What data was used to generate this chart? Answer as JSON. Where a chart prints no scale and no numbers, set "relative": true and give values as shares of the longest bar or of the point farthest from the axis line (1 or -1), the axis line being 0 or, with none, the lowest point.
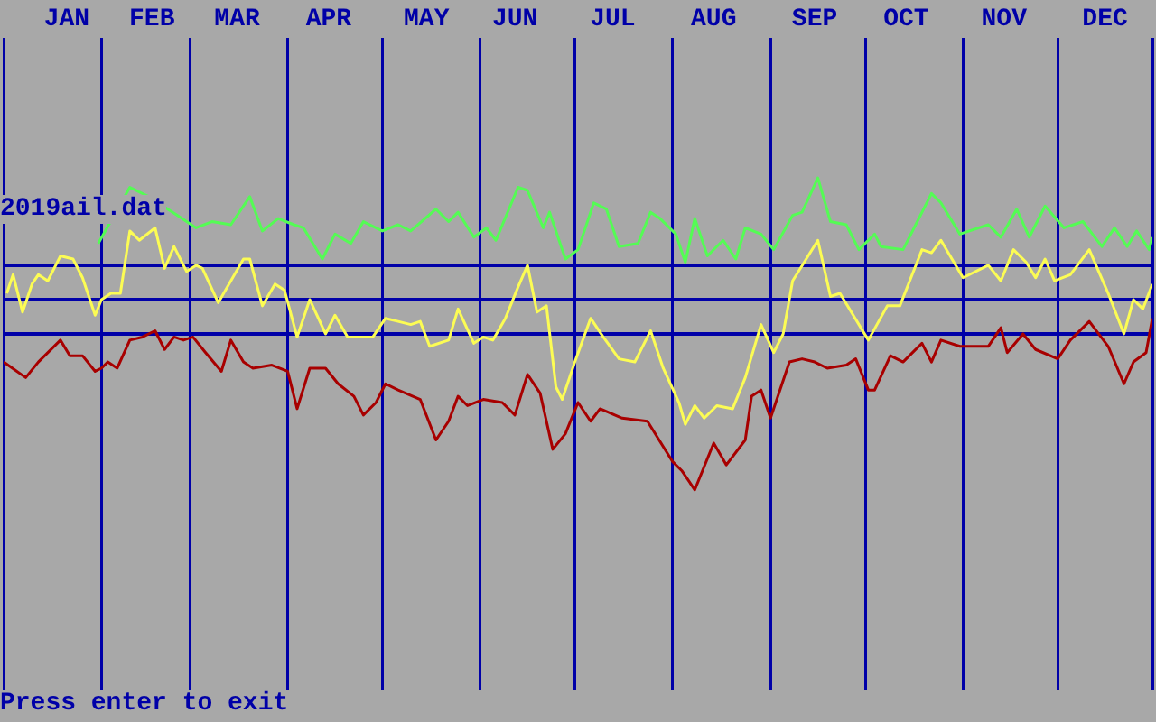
{
  "chart_data": {
    "type": "line",
    "relative": true,
    "xlim": [
      "--01-01",
      "--12-31"
    ],
    "xticks": [
      {
        "value": "--01-01",
        "label": null
      },
      {
        "value": "--01-21",
        "label": "JAN"
      },
      {
        "value": "--02-01",
        "label": null
      },
      {
        "value": "--02-17",
        "label": "FEB"
      },
      {
        "value": "--03-01",
        "label": null
      },
      {
        "value": "--03-16",
        "label": "MAR"
      },
      {
        "value": "--04-01",
        "label": null
      },
      {
        "value": "--04-14",
        "label": "APR"
      },
      {
        "value": "--05-01",
        "label": null
      },
      {
        "value": "--05-15",
        "label": "MAY"
      },
      {
        "value": "--06-01",
        "label": null
      },
      {
        "value": "--06-12",
        "label": "JUN"
      },
      {
        "value": "--07-01",
        "label": null
      },
      {
        "value": "--07-13",
        "label": "JUL"
      },
      {
        "value": "--08-01",
        "label": null
      },
      {
        "value": "--08-14",
        "label": "AUG"
      },
      {
        "value": "--09-01",
        "label": null
      },
      {
        "value": "--09-15",
        "label": "SEP"
      },
      {
        "value": "--10-01",
        "label": null
      },
      {
        "value": "--10-14",
        "label": "OCT"
      },
      {
        "value": "--11-01",
        "label": null
      },
      {
        "value": "--11-14",
        "label": "NOV"
      },
      {
        "value": "--12-01",
        "label": null
      },
      {
        "value": "--12-16",
        "label": "DEC"
      },
      {
        "value": "--12-31",
        "label": null
      }
    ],
    "grid": "x",
    "legend": false,
    "marker": "none",
    "line_style": "solid",
    "series": [
      {
        "color": "#54fc54",
        "x": [
          "--01-31",
          "--02-10",
          "--02-16",
          "--02-25",
          "--03-03",
          "--03-08",
          "--03-14",
          "--03-20",
          "--03-24",
          "--03-29",
          "--04-03",
          "--04-06",
          "--04-12",
          "--04-16",
          "--04-21",
          "--04-25",
          "--05-01",
          "--05-06",
          "--05-10",
          "--05-18",
          "--05-22",
          "--05-25",
          "--05-30",
          "--06-03",
          "--06-06",
          "--06-13",
          "--06-16",
          "--06-21",
          "--06-23",
          "--06-28",
          "--07-02",
          "--07-07",
          "--07-11",
          "--07-15",
          "--07-21",
          "--07-25",
          "--07-28",
          "--08-02",
          "--08-05",
          "--08-08",
          "--08-12",
          "--08-17",
          "--08-21",
          "--08-24",
          "--08-29",
          "--09-02",
          "--09-08",
          "--09-11",
          "--09-16",
          "--09-20",
          "--09-25",
          "--09-29",
          "--10-04",
          "--10-06",
          "--10-13",
          "--10-22",
          "--10-25",
          "--10-31",
          "--11-09",
          "--11-13",
          "--11-18",
          "--11-22",
          "--11-27",
          "--12-03",
          "--12-09",
          "--12-15",
          "--12-19",
          "--12-23",
          "--12-26",
          "--12-30",
          "--12-31"
        ],
        "values": [
          0.79,
          0.97,
          0.94,
          0.88,
          0.84,
          0.86,
          0.85,
          0.94,
          0.83,
          0.87,
          0.85,
          0.84,
          0.74,
          0.82,
          0.79,
          0.86,
          0.83,
          0.85,
          0.83,
          0.9,
          0.86,
          0.89,
          0.81,
          0.84,
          0.8,
          0.97,
          0.96,
          0.84,
          0.89,
          0.74,
          0.77,
          0.92,
          0.9,
          0.78,
          0.79,
          0.89,
          0.87,
          0.82,
          0.73,
          0.87,
          0.75,
          0.8,
          0.74,
          0.84,
          0.82,
          0.77,
          0.88,
          0.89,
          1.0,
          0.86,
          0.85,
          0.77,
          0.82,
          0.78,
          0.77,
          0.95,
          0.92,
          0.82,
          0.85,
          0.81,
          0.9,
          0.81,
          0.91,
          0.84,
          0.86,
          0.78,
          0.84,
          0.78,
          0.83,
          0.77,
          0.81
        ]
      },
      {
        "color": "#fcfc54",
        "x": [
          "--01-02",
          "--01-04",
          "--01-07",
          "--01-10",
          "--01-12",
          "--01-15",
          "--01-19",
          "--01-23",
          "--01-26",
          "--01-30",
          "--02-01",
          "--02-04",
          "--02-07",
          "--02-10",
          "--02-13",
          "--02-18",
          "--02-21",
          "--02-24",
          "--02-28",
          "--03-03",
          "--03-05",
          "--03-10",
          "--03-14",
          "--03-18",
          "--03-20",
          "--03-24",
          "--03-28",
          "--03-31",
          "--04-04",
          "--04-08",
          "--04-13",
          "--04-16",
          "--04-20",
          "--04-28",
          "--05-02",
          "--05-06",
          "--05-10",
          "--05-13",
          "--05-16",
          "--05-22",
          "--05-25",
          "--05-30",
          "--06-02",
          "--06-05",
          "--06-09",
          "--06-13",
          "--06-16",
          "--06-19",
          "--06-22",
          "--06-25",
          "--06-27",
          "--07-01",
          "--07-06",
          "--07-10",
          "--07-15",
          "--07-20",
          "--07-25",
          "--07-29",
          "--08-03",
          "--08-05",
          "--08-08",
          "--08-11",
          "--08-15",
          "--08-20",
          "--08-24",
          "--08-29",
          "--09-02",
          "--09-05",
          "--09-08",
          "--09-16",
          "--09-20",
          "--09-23",
          "--10-02",
          "--10-08",
          "--10-12",
          "--10-19",
          "--10-22",
          "--10-25",
          "--11-01",
          "--11-09",
          "--11-13",
          "--11-17",
          "--11-21",
          "--11-24",
          "--11-27",
          "--11-30",
          "--12-05",
          "--12-11",
          "--12-17",
          "--12-22",
          "--12-25",
          "--12-28",
          "--12-31"
        ],
        "values": [
          0.63,
          0.69,
          0.57,
          0.66,
          0.69,
          0.67,
          0.75,
          0.74,
          0.68,
          0.56,
          0.61,
          0.63,
          0.63,
          0.83,
          0.8,
          0.84,
          0.71,
          0.78,
          0.7,
          0.72,
          0.71,
          0.6,
          0.67,
          0.74,
          0.74,
          0.59,
          0.66,
          0.64,
          0.49,
          0.61,
          0.5,
          0.56,
          0.49,
          0.49,
          0.55,
          0.54,
          0.53,
          0.54,
          0.46,
          0.48,
          0.58,
          0.47,
          0.49,
          0.48,
          0.55,
          0.65,
          0.72,
          0.57,
          0.59,
          0.33,
          0.29,
          0.41,
          0.55,
          0.49,
          0.42,
          0.41,
          0.51,
          0.39,
          0.28,
          0.21,
          0.27,
          0.23,
          0.27,
          0.26,
          0.36,
          0.53,
          0.44,
          0.5,
          0.67,
          0.8,
          0.62,
          0.63,
          0.48,
          0.59,
          0.59,
          0.77,
          0.76,
          0.8,
          0.68,
          0.72,
          0.67,
          0.77,
          0.73,
          0.68,
          0.74,
          0.67,
          0.69,
          0.77,
          0.63,
          0.5,
          0.61,
          0.58,
          0.66
        ]
      },
      {
        "color": "#a80000",
        "x": [
          "--01-01",
          "--01-08",
          "--01-12",
          "--01-19",
          "--01-22",
          "--01-26",
          "--01-30",
          "--02-01",
          "--02-03",
          "--02-06",
          "--02-10",
          "--02-14",
          "--02-18",
          "--02-21",
          "--02-24",
          "--02-27",
          "--03-02",
          "--03-06",
          "--03-11",
          "--03-14",
          "--03-18",
          "--03-21",
          "--03-27",
          "--04-01",
          "--04-04",
          "--04-08",
          "--04-13",
          "--04-17",
          "--04-22",
          "--04-25",
          "--04-29",
          "--05-02",
          "--05-06",
          "--05-13",
          "--05-18",
          "--05-22",
          "--05-25",
          "--05-28",
          "--06-02",
          "--06-08",
          "--06-12",
          "--06-16",
          "--06-20",
          "--06-24",
          "--06-28",
          "--07-02",
          "--07-06",
          "--07-09",
          "--07-16",
          "--07-24",
          "--08-01",
          "--08-04",
          "--08-08",
          "--08-14",
          "--08-18",
          "--08-24",
          "--08-26",
          "--08-29",
          "--09-01",
          "--09-07",
          "--09-11",
          "--09-15",
          "--09-19",
          "--09-25",
          "--09-28",
          "--10-02",
          "--10-04",
          "--10-09",
          "--10-13",
          "--10-19",
          "--10-22",
          "--10-25",
          "--10-31",
          "--11-09",
          "--11-13",
          "--11-15",
          "--11-20",
          "--11-24",
          "--12-01",
          "--12-05",
          "--12-11",
          "--12-17",
          "--12-22",
          "--12-25",
          "--12-29",
          "--12-31"
        ],
        "values": [
          0.41,
          0.36,
          0.41,
          0.48,
          0.43,
          0.43,
          0.38,
          0.39,
          0.41,
          0.39,
          0.48,
          0.49,
          0.51,
          0.45,
          0.49,
          0.48,
          0.49,
          0.44,
          0.38,
          0.48,
          0.41,
          0.39,
          0.4,
          0.38,
          0.26,
          0.39,
          0.39,
          0.34,
          0.3,
          0.24,
          0.28,
          0.34,
          0.32,
          0.29,
          0.16,
          0.22,
          0.3,
          0.27,
          0.29,
          0.28,
          0.24,
          0.37,
          0.31,
          0.13,
          0.18,
          0.28,
          0.22,
          0.26,
          0.23,
          0.22,
          0.09,
          0.06,
          0,
          0.15,
          0.08,
          0.16,
          0.3,
          0.32,
          0.23,
          0.41,
          0.42,
          0.41,
          0.39,
          0.4,
          0.42,
          0.32,
          0.32,
          0.43,
          0.41,
          0.47,
          0.41,
          0.48,
          0.46,
          0.46,
          0.52,
          0.44,
          0.5,
          0.45,
          0.42,
          0.48,
          0.54,
          0.46,
          0.34,
          0.41,
          0.44,
          0.55
        ]
      }
    ],
    "ref_lines": [
      {
        "axis": "y",
        "value": 0.72,
        "color": "#0000a8"
      },
      {
        "axis": "y",
        "value": 0.61,
        "color": "#0000a8"
      },
      {
        "axis": "y",
        "value": 0.5,
        "color": "#0000a8"
      }
    ],
    "annotations": [
      "2019ail.dat",
      "Press enter to exit"
    ]
  }
}
